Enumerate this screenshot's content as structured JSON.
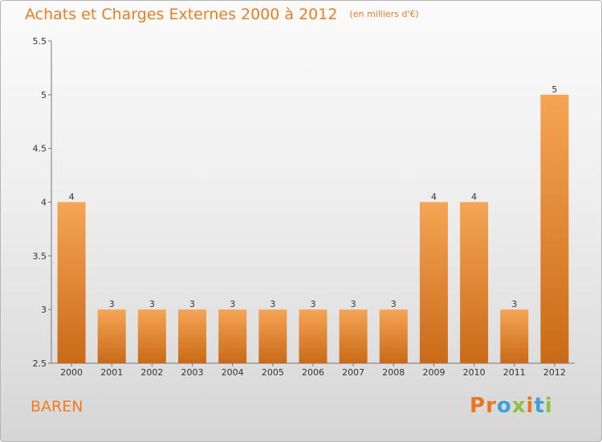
{
  "title": "Achats et Charges Externes 2000 à 2012",
  "unit": "(en milliers d'€)",
  "commune": "BAREN",
  "brand": "Proxiti",
  "colors": {
    "accent": "#f07c1e",
    "bar_top": "#f5a554",
    "bar_bottom": "#c96a18",
    "brand_letters": [
      "#e9771f",
      "#e9771f",
      "#3f9fd8",
      "#8cc43d",
      "#e9771f",
      "#3f9fd8",
      "#8cc43d"
    ]
  },
  "chart_data": {
    "type": "bar",
    "categories": [
      "2000",
      "2001",
      "2002",
      "2003",
      "2004",
      "2005",
      "2006",
      "2007",
      "2008",
      "2009",
      "2010",
      "2011",
      "2012"
    ],
    "values": [
      4,
      3,
      3,
      3,
      3,
      3,
      3,
      3,
      3,
      4,
      4,
      3,
      5
    ],
    "data_labels": [
      "4",
      "3",
      "3",
      "3",
      "3",
      "3",
      "3",
      "3",
      "3",
      "4",
      "4",
      "3",
      "5"
    ],
    "ylim": [
      2.5,
      5.5
    ],
    "yticks": [
      "2.5",
      "3",
      "3.5",
      "4",
      "4.5",
      "5",
      "5.5"
    ],
    "xlabel": "",
    "ylabel": "",
    "grid": false,
    "legend": "none"
  }
}
